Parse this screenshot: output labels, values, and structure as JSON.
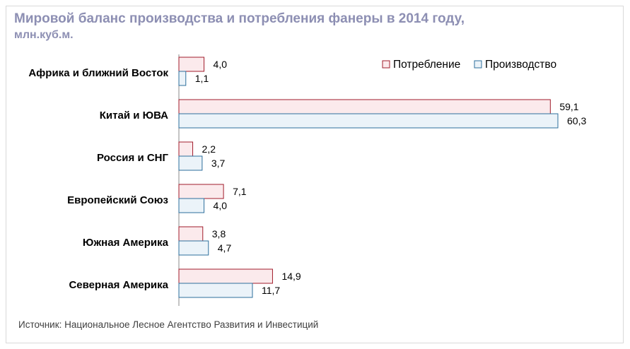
{
  "chart_data": {
    "type": "bar",
    "orientation": "horizontal",
    "title": "Мировой баланс производства и потребления фанеры в 2014 году,",
    "subtitle": "млн.куб.м.",
    "categories": [
      "Африка и ближний Восток",
      "Китай и ЮВА",
      "Россия и СНГ",
      "Европейский Союз",
      "Южная Америка",
      "Северная Америка"
    ],
    "series": [
      {
        "name": "Потребление",
        "values": [
          4.0,
          59.1,
          2.2,
          7.1,
          3.8,
          14.9
        ],
        "labels": [
          "4,0",
          "59,1",
          "2,2",
          "7,1",
          "3,8",
          "14,9"
        ],
        "fill": "#fbeaec",
        "stroke": "#a11c2b"
      },
      {
        "name": "Производство",
        "values": [
          1.1,
          60.3,
          3.7,
          4.0,
          4.7,
          11.7
        ],
        "labels": [
          "1,1",
          "60,3",
          "3,7",
          "4,0",
          "4,7",
          "11,7"
        ],
        "fill": "#ebf3f9",
        "stroke": "#2e6f9c"
      }
    ],
    "xlim": [
      0,
      60.3
    ],
    "legend": "top-right",
    "source": "Источник: Национальное Лесное Агентство Развития и Инвестиций"
  },
  "colors": {
    "title": "#8d8fb3",
    "axis": "#888888"
  }
}
